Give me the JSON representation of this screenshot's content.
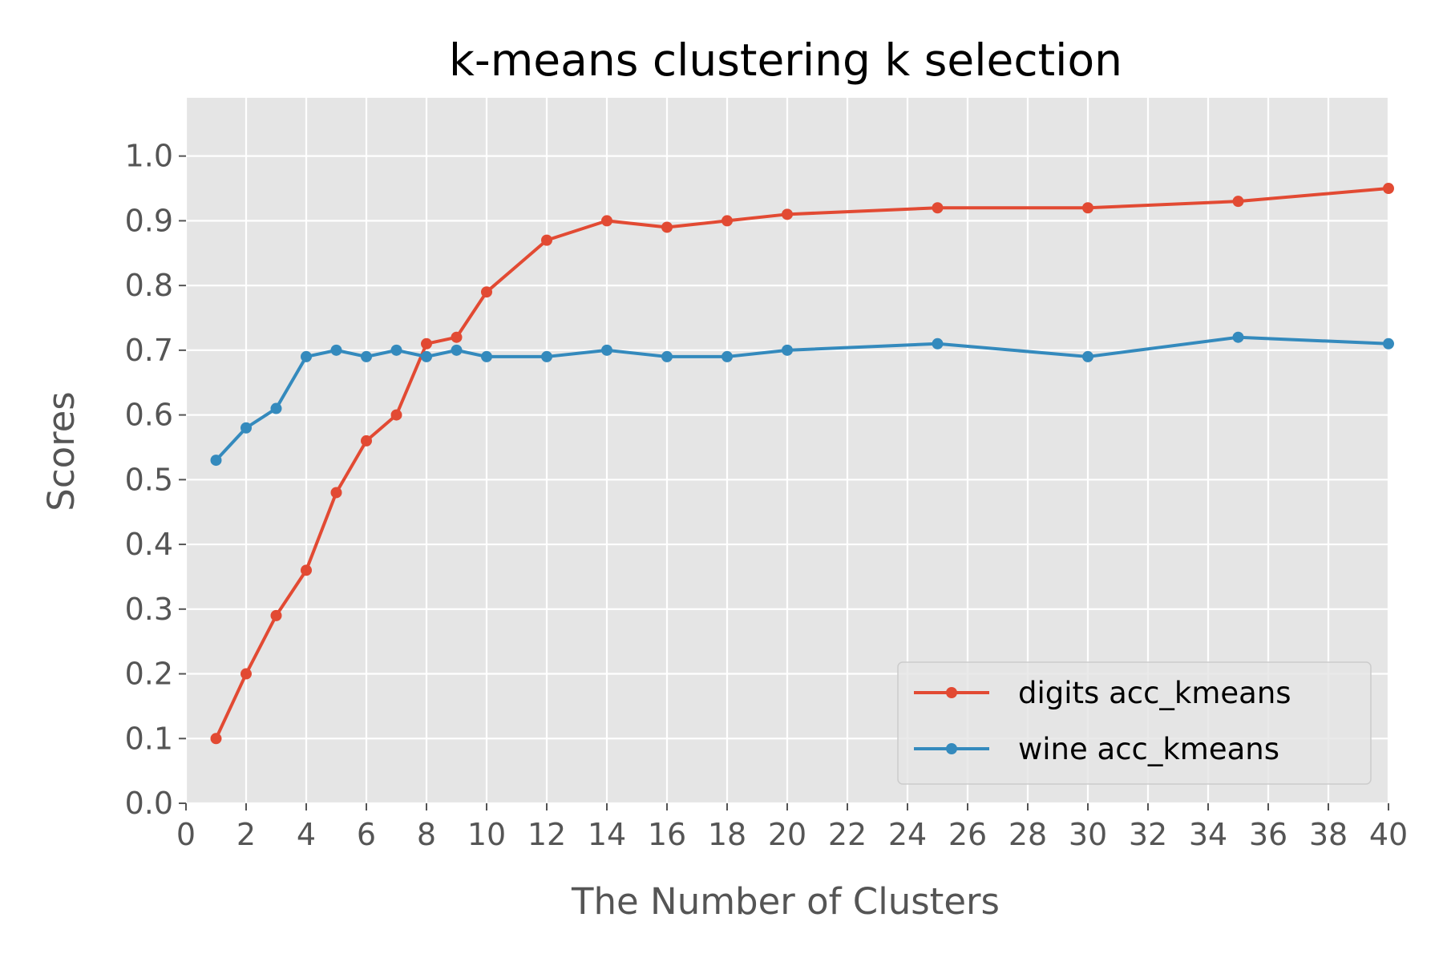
{
  "chart_data": {
    "type": "line",
    "title": "k-means clustering k selection",
    "xlabel": "The Number of Clusters",
    "ylabel": "Scores",
    "xlim": [
      0,
      40
    ],
    "ylim": [
      0,
      1.09
    ],
    "xticks": [
      0,
      2,
      4,
      6,
      8,
      10,
      12,
      14,
      16,
      18,
      20,
      22,
      24,
      26,
      28,
      30,
      32,
      34,
      36,
      38,
      40
    ],
    "xtick_labels": [
      "0",
      "2",
      "4",
      "6",
      "8",
      "10",
      "12",
      "14",
      "16",
      "18",
      "20",
      "22",
      "24",
      "26",
      "28",
      "30",
      "32",
      "34",
      "36",
      "38",
      "40"
    ],
    "yticks": [
      0.0,
      0.1,
      0.2,
      0.3,
      0.4,
      0.5,
      0.6,
      0.7,
      0.8,
      0.9,
      1.0
    ],
    "ytick_labels": [
      "0.0",
      "0.1",
      "0.2",
      "0.3",
      "0.4",
      "0.5",
      "0.6",
      "0.7",
      "0.8",
      "0.9",
      "1.0"
    ],
    "grid": true,
    "legend_position": "lower-right",
    "x": [
      1,
      2,
      3,
      4,
      5,
      6,
      7,
      8,
      9,
      10,
      12,
      14,
      16,
      18,
      20,
      25,
      30,
      35,
      40
    ],
    "series": [
      {
        "name": "digits acc_kmeans",
        "color": "#E24A33",
        "values": [
          0.1,
          0.2,
          0.29,
          0.36,
          0.48,
          0.56,
          0.6,
          0.71,
          0.72,
          0.79,
          0.87,
          0.9,
          0.89,
          0.9,
          0.91,
          0.92,
          0.92,
          0.93,
          0.95
        ]
      },
      {
        "name": "wine acc_kmeans",
        "color": "#348ABD",
        "values": [
          0.53,
          0.58,
          0.61,
          0.69,
          0.7,
          0.69,
          0.7,
          0.69,
          0.7,
          0.69,
          0.69,
          0.7,
          0.69,
          0.69,
          0.7,
          0.71,
          0.69,
          0.72,
          0.71
        ]
      }
    ]
  },
  "colors": {
    "plot_background": "#E5E5E5",
    "grid": "#FFFFFF",
    "text": "#555555"
  }
}
